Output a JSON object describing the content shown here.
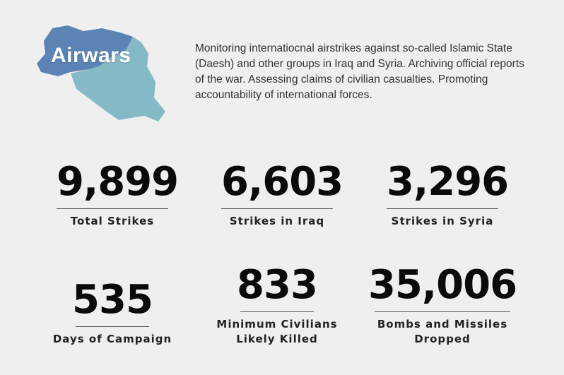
{
  "brand": {
    "name": "Airwars",
    "colors": {
      "map_west": "#5b84b4",
      "map_east": "#86b9c6",
      "text": "#ffffff"
    }
  },
  "tagline": "Monitoring internatiocnal airstrikes against so-called Islamic State (Daesh) and other groups in Iraq and Syria. Archiving official reports of the war. Assessing claims of civilian casualties. Promoting accountability of international forces.",
  "stats": [
    {
      "value": "9,899",
      "label": "Total Strikes"
    },
    {
      "value": "6,603",
      "label": "Strikes in Iraq"
    },
    {
      "value": "3,296",
      "label": "Strikes in Syria"
    },
    {
      "value": "535",
      "label": "Days of Campaign"
    },
    {
      "value": "833",
      "label_line1": "Minimum Civilians",
      "label_line2": "Likely Killed"
    },
    {
      "value": "35,006",
      "label_line1": "Bombs and Missiles",
      "label_line2": "Dropped"
    }
  ]
}
